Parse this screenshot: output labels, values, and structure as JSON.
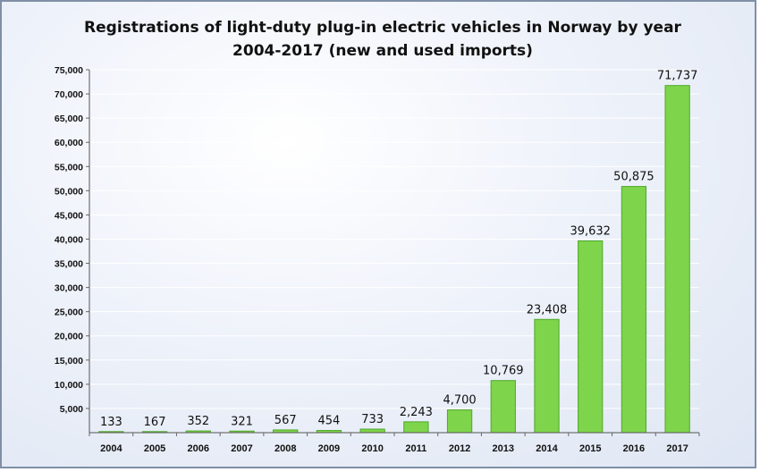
{
  "chart_data": {
    "type": "bar",
    "title": [
      "Registrations of light-duty plug-in electric vehicles in Norway by year",
      "2004-2017 (new and used imports)"
    ],
    "categories": [
      "2004",
      "2005",
      "2006",
      "2007",
      "2008",
      "2009",
      "2010",
      "2011",
      "2012",
      "2013",
      "2014",
      "2015",
      "2016",
      "2017"
    ],
    "values": [
      133,
      167,
      352,
      321,
      567,
      454,
      733,
      2243,
      4700,
      10769,
      23408,
      39632,
      50875,
      71737
    ],
    "data_labels": [
      "133",
      "167",
      "352",
      "321",
      "567",
      "454",
      "733",
      "2,243",
      "4,700",
      "10,769",
      "23,408",
      "39,632",
      "50,875",
      "71,737"
    ],
    "ylim": [
      0,
      75000
    ],
    "yticks": [
      5000,
      10000,
      15000,
      20000,
      25000,
      30000,
      35000,
      40000,
      45000,
      50000,
      55000,
      60000,
      65000,
      70000,
      75000
    ],
    "ytick_labels": [
      "5,000",
      "10,000",
      "15,000",
      "20,000",
      "25,000",
      "30,000",
      "35,000",
      "40,000",
      "45,000",
      "50,000",
      "55,000",
      "60,000",
      "65,000",
      "70,000",
      "75,000"
    ],
    "xlabel": "",
    "ylabel": "",
    "grid": true,
    "colors": {
      "bar_fill": "#7ed44a",
      "bar_stroke": "#4fa82c",
      "gridline": "#ffffff"
    }
  }
}
